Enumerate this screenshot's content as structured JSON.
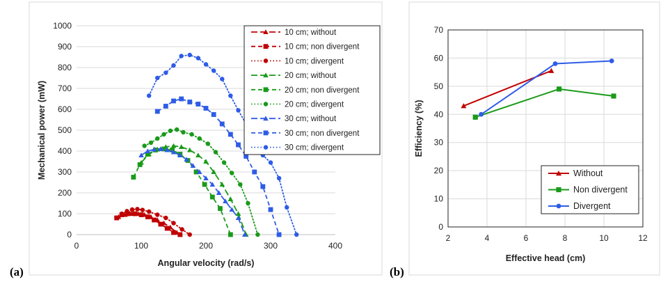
{
  "chart_data": [
    {
      "panel_label": "(a)",
      "type": "line",
      "xlabel": "Angular velocity (rad/s)",
      "ylabel": "Mechanical power (mW)",
      "xlim": [
        0,
        400
      ],
      "ylim": [
        0,
        1000
      ],
      "xticks": [
        0,
        100,
        200,
        300,
        400
      ],
      "yticks": [
        0,
        100,
        200,
        300,
        400,
        500,
        600,
        700,
        800,
        900,
        1000
      ],
      "legend_position": "top-right",
      "series": [
        {
          "name": "10 cm; without",
          "color": "#c00000",
          "marker": "triangle",
          "dash": "long",
          "x": [
            65,
            75,
            85,
            95,
            105,
            115,
            125,
            135,
            145,
            155,
            160
          ],
          "y": [
            85,
            95,
            100,
            100,
            95,
            85,
            70,
            55,
            35,
            10,
            0
          ]
        },
        {
          "name": "10 cm; non divergent",
          "color": "#c00000",
          "marker": "square",
          "dash": "medium",
          "x": [
            62,
            70,
            80,
            90,
            100,
            110,
            120,
            130,
            140,
            150,
            160
          ],
          "y": [
            80,
            95,
            100,
            100,
            95,
            85,
            70,
            50,
            30,
            10,
            0
          ]
        },
        {
          "name": "10 cm; divergent",
          "color": "#c00000",
          "marker": "circle",
          "dash": "dot",
          "x": [
            70,
            78,
            86,
            94,
            102,
            112,
            125,
            138,
            150,
            163,
            175
          ],
          "y": [
            100,
            112,
            120,
            122,
            118,
            110,
            95,
            80,
            55,
            25,
            0
          ]
        },
        {
          "name": "20 cm; without",
          "color": "#1a9a1a",
          "marker": "triangle",
          "dash": "long",
          "x": [
            100,
            112,
            125,
            138,
            150,
            162,
            175,
            188,
            200,
            212,
            225,
            238,
            250,
            262
          ],
          "y": [
            345,
            385,
            408,
            420,
            425,
            420,
            405,
            380,
            350,
            300,
            240,
            170,
            100,
            0
          ]
        },
        {
          "name": "20 cm; non divergent",
          "color": "#1a9a1a",
          "marker": "square",
          "dash": "medium",
          "x": [
            88,
            98,
            110,
            122,
            135,
            148,
            160,
            172,
            185,
            198,
            210,
            222,
            238
          ],
          "y": [
            275,
            335,
            385,
            405,
            410,
            405,
            385,
            355,
            300,
            240,
            180,
            125,
            0
          ]
        },
        {
          "name": "20 cm; divergent",
          "color": "#1a9a1a",
          "marker": "circle",
          "dash": "dot",
          "x": [
            105,
            115,
            125,
            135,
            145,
            155,
            165,
            178,
            190,
            203,
            215,
            228,
            240,
            253,
            265,
            280
          ],
          "y": [
            425,
            440,
            460,
            480,
            497,
            503,
            490,
            480,
            460,
            435,
            395,
            345,
            295,
            240,
            150,
            0
          ]
        },
        {
          "name": "30 cm; without",
          "color": "#2e5ce6",
          "marker": "triangle",
          "dash": "long",
          "x": [
            100,
            110,
            120,
            130,
            140,
            150,
            160,
            170,
            180,
            190,
            200,
            210,
            220,
            230,
            240,
            250,
            260
          ],
          "y": [
            380,
            400,
            408,
            410,
            405,
            395,
            380,
            360,
            330,
            300,
            270,
            240,
            200,
            160,
            120,
            80,
            0
          ]
        },
        {
          "name": "30 cm; non divergent",
          "color": "#2e5ce6",
          "marker": "square",
          "dash": "medium",
          "x": [
            125,
            138,
            150,
            162,
            175,
            188,
            200,
            212,
            225,
            238,
            250,
            262,
            275,
            288,
            300,
            313
          ],
          "y": [
            590,
            615,
            640,
            650,
            635,
            625,
            605,
            575,
            530,
            480,
            430,
            375,
            300,
            230,
            120,
            0
          ]
        },
        {
          "name": "30 cm; divergent",
          "color": "#2e5ce6",
          "marker": "circle",
          "dash": "dot",
          "x": [
            112,
            125,
            138,
            150,
            162,
            175,
            188,
            200,
            212,
            225,
            238,
            250,
            262,
            275,
            288,
            300,
            313,
            325,
            340
          ],
          "y": [
            665,
            750,
            775,
            810,
            855,
            860,
            845,
            815,
            785,
            745,
            665,
            595,
            530,
            445,
            380,
            345,
            270,
            130,
            0
          ]
        }
      ]
    },
    {
      "panel_label": "(b)",
      "type": "line",
      "xlabel": "Effective head (cm)",
      "ylabel": "Efficiency (%)",
      "xlim": [
        2,
        12
      ],
      "ylim": [
        0,
        70
      ],
      "xticks": [
        2,
        4,
        6,
        8,
        10,
        12
      ],
      "yticks": [
        0,
        10,
        20,
        30,
        40,
        50,
        60,
        70
      ],
      "legend_position": "bottom-right",
      "series": [
        {
          "name": "Without",
          "color": "#c00000",
          "marker": "triangle",
          "x": [
            2.8,
            7.3
          ],
          "y": [
            43,
            55.5
          ]
        },
        {
          "name": "Non divergent",
          "color": "#1a9a1a",
          "marker": "square",
          "x": [
            3.4,
            7.7,
            10.5
          ],
          "y": [
            39,
            49,
            46.5
          ]
        },
        {
          "name": "Divergent",
          "color": "#2e5ce6",
          "marker": "circle",
          "x": [
            3.7,
            7.5,
            10.4
          ],
          "y": [
            40,
            58,
            59
          ]
        }
      ]
    }
  ]
}
